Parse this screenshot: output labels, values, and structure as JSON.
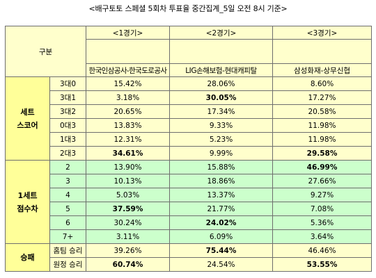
{
  "title": "<배구토토 스페셜 5회차 투표율 중간집계_5일 오전 8시 기준>",
  "header": {
    "category": "구분",
    "games": [
      {
        "label": "<1경기>",
        "teams": "한국인삼공사-한국도로공사"
      },
      {
        "label": "<2경기>",
        "teams": "LIG손해보험-현대캐피탈"
      },
      {
        "label": "<3경기>",
        "teams": "삼성화재-상무신협"
      }
    ]
  },
  "sections": [
    {
      "name_line1": "세트",
      "name_line2": "스코어",
      "rows": [
        {
          "label": "3대0",
          "values": [
            "15.42%",
            "28.06%",
            "8.60%"
          ],
          "bold": [
            false,
            false,
            false
          ]
        },
        {
          "label": "3대1",
          "values": [
            "3.18%",
            "30.05%",
            "17.27%"
          ],
          "bold": [
            false,
            true,
            false
          ]
        },
        {
          "label": "3대2",
          "values": [
            "20.65%",
            "17.34%",
            "20.58%"
          ],
          "bold": [
            false,
            false,
            false
          ]
        },
        {
          "label": "0대3",
          "values": [
            "13.83%",
            "9.33%",
            "11.98%"
          ],
          "bold": [
            false,
            false,
            false
          ]
        },
        {
          "label": "1대3",
          "values": [
            "12.31%",
            "5.23%",
            "11.98%"
          ],
          "bold": [
            false,
            false,
            false
          ]
        },
        {
          "label": "2대3",
          "values": [
            "34.61%",
            "9.99%",
            "29.58%"
          ],
          "bold": [
            true,
            false,
            true
          ]
        }
      ]
    },
    {
      "name_line1": "1세트",
      "name_line2": "점수차",
      "rows": [
        {
          "label": "2",
          "values": [
            "13.90%",
            "15.88%",
            "46.99%"
          ],
          "bold": [
            false,
            false,
            true
          ]
        },
        {
          "label": "3",
          "values": [
            "10.13%",
            "18.86%",
            "27.66%"
          ],
          "bold": [
            false,
            false,
            false
          ]
        },
        {
          "label": "4",
          "values": [
            "5.03%",
            "13.37%",
            "9.27%"
          ],
          "bold": [
            false,
            false,
            false
          ]
        },
        {
          "label": "5",
          "values": [
            "37.59%",
            "21.77%",
            "7.08%"
          ],
          "bold": [
            true,
            false,
            false
          ]
        },
        {
          "label": "6",
          "values": [
            "30.24%",
            "24.02%",
            "5.36%"
          ],
          "bold": [
            false,
            true,
            false
          ]
        },
        {
          "label": "7+",
          "values": [
            "3.11%",
            "6.09%",
            "3.64%"
          ],
          "bold": [
            false,
            false,
            false
          ]
        }
      ]
    },
    {
      "name_line1": "승패",
      "name_line2": "",
      "rows": [
        {
          "label": "홈팀 승리",
          "values": [
            "39.26%",
            "75.44%",
            "46.46%"
          ],
          "bold": [
            false,
            true,
            false
          ]
        },
        {
          "label": "원정 승리",
          "values": [
            "60.74%",
            "24.54%",
            "53.55%"
          ],
          "bold": [
            true,
            false,
            true
          ]
        }
      ]
    }
  ]
}
